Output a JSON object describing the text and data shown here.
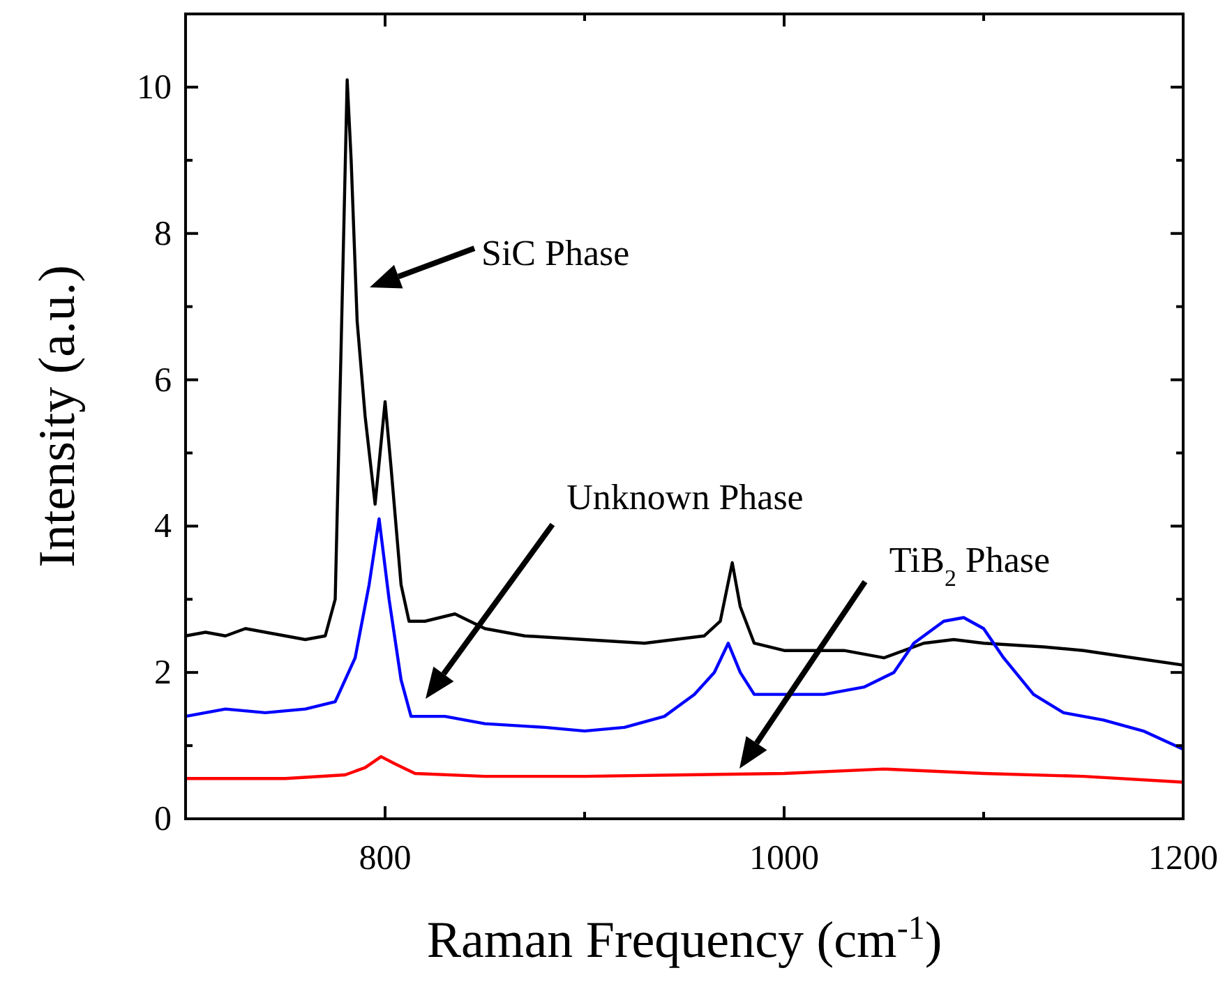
{
  "chart_data": {
    "type": "line",
    "xlabel": "Raman Frequency (cm$^{-1}$)",
    "ylabel": "Intensity (a.u.)",
    "xlim": [
      700,
      1200
    ],
    "ylim": [
      0,
      11
    ],
    "xticks": [
      {
        "value": 700,
        "label": null
      },
      800,
      {
        "value": 900,
        "label": null
      },
      1000,
      {
        "value": 1100,
        "label": null
      },
      1200
    ],
    "yticks": [
      0,
      {
        "value": 1,
        "label": null
      },
      2,
      {
        "value": 3,
        "label": null
      },
      4,
      {
        "value": 5,
        "label": null
      },
      6,
      {
        "value": 7,
        "label": null
      },
      8,
      {
        "value": 9,
        "label": null
      },
      10
    ],
    "grid": false,
    "marker": "none",
    "line_style": "solid",
    "annotations": [
      "SiC Phase",
      "Unknown Phase",
      "TiB$_{2}$ Phase"
    ],
    "series": [
      {
        "color": "#000000",
        "x": [
          700,
          710,
          720,
          730,
          740,
          750,
          760,
          770,
          775,
          778,
          781,
          783,
          786,
          790,
          795,
          800,
          803,
          808,
          812,
          820,
          835,
          850,
          870,
          900,
          930,
          960,
          968,
          974,
          978,
          985,
          1000,
          1030,
          1050,
          1070,
          1085,
          1100,
          1130,
          1150,
          1175,
          1200
        ],
        "values": [
          2.5,
          2.55,
          2.5,
          2.6,
          2.55,
          2.5,
          2.45,
          2.5,
          3.0,
          6.5,
          10.1,
          9.0,
          6.8,
          5.5,
          4.3,
          5.7,
          4.8,
          3.2,
          2.7,
          2.7,
          2.8,
          2.6,
          2.5,
          2.45,
          2.4,
          2.5,
          2.7,
          3.5,
          2.9,
          2.4,
          2.3,
          2.3,
          2.2,
          2.4,
          2.45,
          2.4,
          2.35,
          2.3,
          2.2,
          2.1
        ]
      },
      {
        "color": "#0000ff",
        "x": [
          700,
          720,
          740,
          760,
          775,
          785,
          792,
          797,
          802,
          808,
          813,
          830,
          850,
          880,
          900,
          920,
          940,
          955,
          965,
          972,
          978,
          985,
          1000,
          1020,
          1040,
          1055,
          1065,
          1080,
          1090,
          1100,
          1110,
          1125,
          1140,
          1160,
          1180,
          1200
        ],
        "values": [
          1.4,
          1.5,
          1.45,
          1.5,
          1.6,
          2.2,
          3.2,
          4.1,
          3.0,
          1.9,
          1.4,
          1.4,
          1.3,
          1.25,
          1.2,
          1.25,
          1.4,
          1.7,
          2.0,
          2.4,
          2.0,
          1.7,
          1.7,
          1.7,
          1.8,
          2.0,
          2.4,
          2.7,
          2.75,
          2.6,
          2.2,
          1.7,
          1.45,
          1.35,
          1.2,
          0.95
        ]
      },
      {
        "color": "#ff0000",
        "x": [
          700,
          750,
          780,
          790,
          798,
          805,
          815,
          850,
          900,
          950,
          1000,
          1050,
          1100,
          1150,
          1200
        ],
        "values": [
          0.55,
          0.55,
          0.6,
          0.7,
          0.85,
          0.75,
          0.62,
          0.58,
          0.58,
          0.6,
          0.62,
          0.68,
          0.62,
          0.58,
          0.5
        ]
      }
    ]
  }
}
